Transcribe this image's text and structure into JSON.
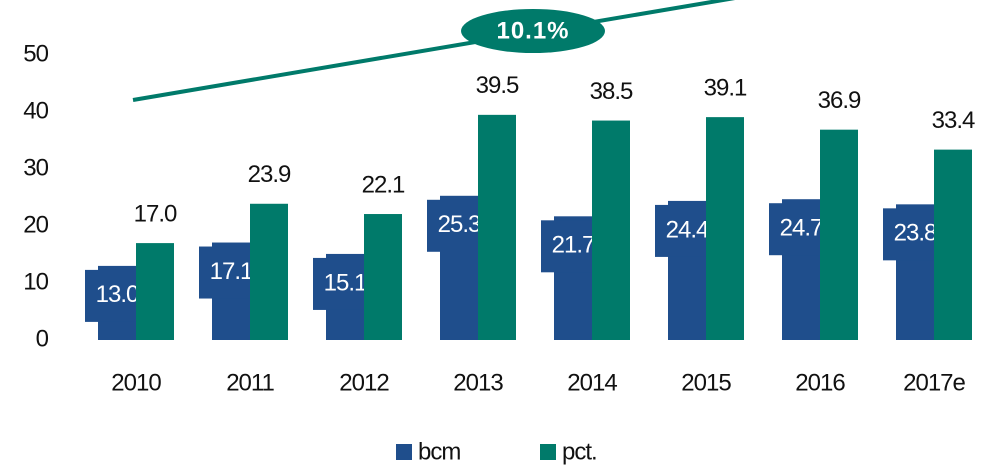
{
  "chart_data": {
    "type": "bar",
    "categories": [
      "2010",
      "2011",
      "2012",
      "2013",
      "2014",
      "2015",
      "2016",
      "2017e"
    ],
    "series": [
      {
        "name": "bcm",
        "color": "#1f4e8c",
        "values": [
          13.0,
          17.1,
          15.1,
          25.3,
          21.7,
          24.4,
          24.7,
          23.8
        ],
        "value_labels": [
          "13.0",
          "17.1",
          "15.1",
          "25.3",
          "21.7",
          "24.4",
          "24.7",
          "23.8"
        ]
      },
      {
        "name": "pct.",
        "color": "#007a6a",
        "values": [
          17.0,
          23.9,
          22.1,
          39.5,
          38.5,
          39.1,
          36.9,
          33.4
        ],
        "value_labels": [
          "17.0",
          "23.9",
          "22.1",
          "39.5",
          "38.5",
          "39.1",
          "36.9",
          "33.4"
        ]
      }
    ],
    "annotation": "10.1%",
    "ylim": [
      0,
      50
    ],
    "yticks": [
      0,
      10,
      20,
      30,
      40,
      50
    ],
    "grid": false,
    "legend": "bottom"
  }
}
